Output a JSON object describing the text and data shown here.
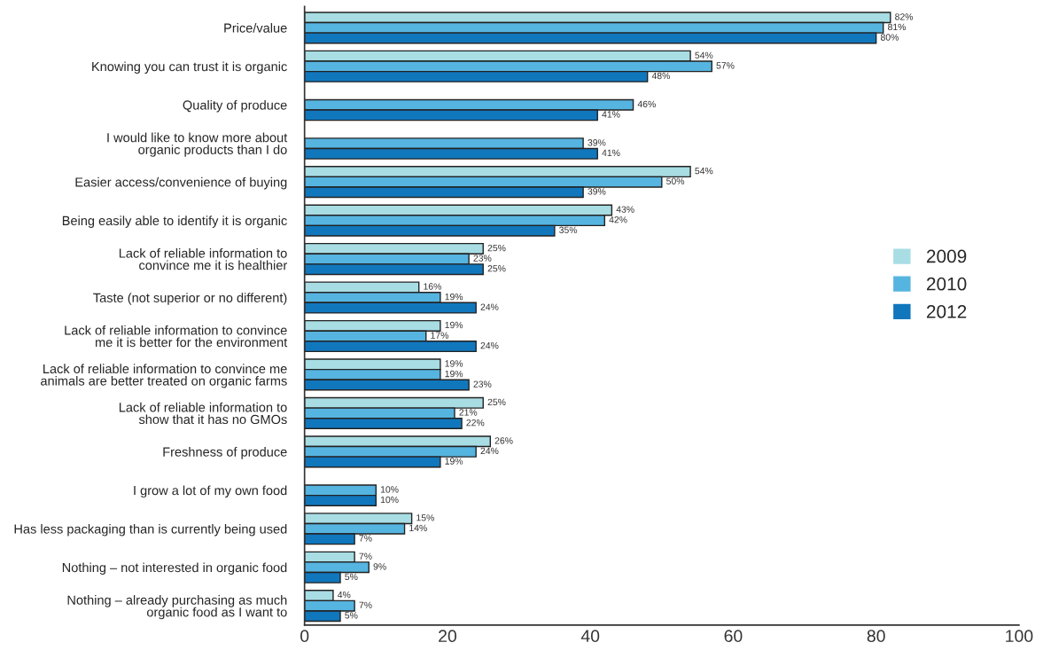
{
  "chart_data": {
    "type": "bar",
    "orientation": "horizontal",
    "categories": [
      "Price/value",
      "Knowing you can trust it is organic",
      "Quality of produce",
      "I would like to know more about\norganic products than I do",
      "Easier access/convenience of buying",
      "Being easily able to identify it is organic",
      "Lack of reliable information to\nconvince me it is healthier",
      "Taste (not superior or no different)",
      "Lack of reliable information to convince\nme it is better for the environment",
      "Lack of reliable information to convince me\nanimals are better treated on organic farms",
      "Lack of reliable information to\nshow that it has no GMOs",
      "Freshness of produce",
      "I grow a lot of my own food",
      "Has less packaging than is currently being used",
      "Nothing – not interested in organic food",
      "Nothing – already purchasing as much\norganic food as I want to"
    ],
    "series": [
      {
        "name": "2009",
        "color": "#a8dde4",
        "values": [
          82,
          54,
          null,
          null,
          54,
          43,
          25,
          16,
          19,
          19,
          25,
          26,
          null,
          15,
          7,
          4
        ],
        "value_labels": [
          "82%",
          "54%",
          null,
          null,
          "54%",
          "43%",
          "25%",
          "16%",
          "19%",
          "19%",
          "25%",
          "26%",
          null,
          "15%",
          "7%",
          "4%"
        ]
      },
      {
        "name": "2010",
        "color": "#56b4e0",
        "values": [
          81,
          57,
          46,
          39,
          50,
          42,
          23,
          19,
          17,
          19,
          21,
          24,
          10,
          14,
          9,
          7
        ],
        "value_labels": [
          "81%",
          "57%",
          "46%",
          "39%",
          "50%",
          "42%",
          "23%",
          "19%",
          "17%",
          "19%",
          "21%",
          "24%",
          "10%",
          "14%",
          "9%",
          "7%"
        ]
      },
      {
        "name": "2012",
        "color": "#1177bd",
        "values": [
          80,
          48,
          41,
          41,
          39,
          35,
          25,
          24,
          24,
          23,
          22,
          19,
          10,
          7,
          5,
          5
        ],
        "value_labels": [
          "80%",
          "48%",
          "41%",
          "41%",
          "39%",
          "35%",
          "25%",
          "24%",
          "24%",
          "23%",
          "22%",
          "19%",
          "10%",
          "7%",
          "5%",
          "5%"
        ]
      }
    ],
    "xlim": [
      0,
      100
    ],
    "xticks": [
      0,
      20,
      40,
      60,
      80,
      100
    ],
    "grid": false,
    "legend": "right"
  }
}
